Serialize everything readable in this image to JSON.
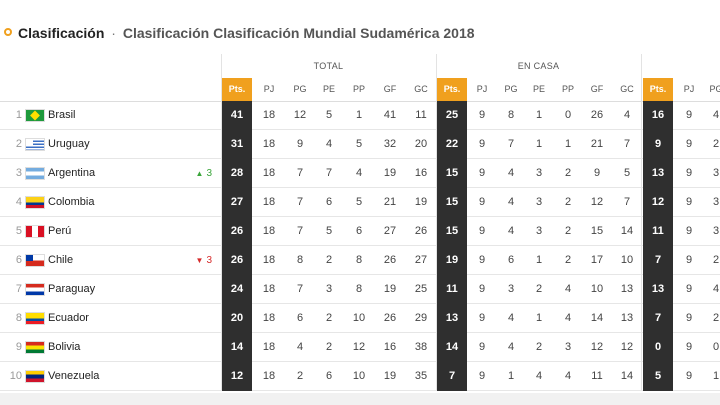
{
  "title": {
    "main": "Clasificación",
    "separator": "·",
    "sub": "Clasificación Clasificación Mundial Sudamérica 2018"
  },
  "groups": {
    "total": "TOTAL",
    "home": "EN CASA"
  },
  "columns": {
    "pts": "Pts.",
    "pj": "PJ",
    "pg": "PG",
    "pe": "PE",
    "pp": "PP",
    "gf": "GF",
    "gc": "GC"
  },
  "teams": [
    {
      "pos": "1",
      "name": "Brasil",
      "trend": "",
      "trend_dir": "",
      "flag": "brazil",
      "total": [
        "41",
        "18",
        "12",
        "5",
        "1",
        "41",
        "11"
      ],
      "home": [
        "25",
        "9",
        "8",
        "1",
        "0",
        "26",
        "4"
      ],
      "away": [
        "16",
        "9",
        "4"
      ]
    },
    {
      "pos": "2",
      "name": "Uruguay",
      "trend": "",
      "trend_dir": "",
      "flag": "uruguay",
      "total": [
        "31",
        "18",
        "9",
        "4",
        "5",
        "32",
        "20"
      ],
      "home": [
        "22",
        "9",
        "7",
        "1",
        "1",
        "21",
        "7"
      ],
      "away": [
        "9",
        "9",
        "2"
      ]
    },
    {
      "pos": "3",
      "name": "Argentina",
      "trend": "3",
      "trend_dir": "up",
      "flag": "argentina",
      "total": [
        "28",
        "18",
        "7",
        "7",
        "4",
        "19",
        "16"
      ],
      "home": [
        "15",
        "9",
        "4",
        "3",
        "2",
        "9",
        "5"
      ],
      "away": [
        "13",
        "9",
        "3"
      ]
    },
    {
      "pos": "4",
      "name": "Colombia",
      "trend": "",
      "trend_dir": "",
      "flag": "colombia",
      "total": [
        "27",
        "18",
        "7",
        "6",
        "5",
        "21",
        "19"
      ],
      "home": [
        "15",
        "9",
        "4",
        "3",
        "2",
        "12",
        "7"
      ],
      "away": [
        "12",
        "9",
        "3"
      ]
    },
    {
      "pos": "5",
      "name": "Perú",
      "trend": "",
      "trend_dir": "",
      "flag": "peru",
      "total": [
        "26",
        "18",
        "7",
        "5",
        "6",
        "27",
        "26"
      ],
      "home": [
        "15",
        "9",
        "4",
        "3",
        "2",
        "15",
        "14"
      ],
      "away": [
        "11",
        "9",
        "3"
      ]
    },
    {
      "pos": "6",
      "name": "Chile",
      "trend": "3",
      "trend_dir": "down",
      "flag": "chile",
      "total": [
        "26",
        "18",
        "8",
        "2",
        "8",
        "26",
        "27"
      ],
      "home": [
        "19",
        "9",
        "6",
        "1",
        "2",
        "17",
        "10"
      ],
      "away": [
        "7",
        "9",
        "2"
      ]
    },
    {
      "pos": "7",
      "name": "Paraguay",
      "trend": "",
      "trend_dir": "",
      "flag": "paraguay",
      "total": [
        "24",
        "18",
        "7",
        "3",
        "8",
        "19",
        "25"
      ],
      "home": [
        "11",
        "9",
        "3",
        "2",
        "4",
        "10",
        "13"
      ],
      "away": [
        "13",
        "9",
        "4"
      ]
    },
    {
      "pos": "8",
      "name": "Ecuador",
      "trend": "",
      "trend_dir": "",
      "flag": "ecuador",
      "total": [
        "20",
        "18",
        "6",
        "2",
        "10",
        "26",
        "29"
      ],
      "home": [
        "13",
        "9",
        "4",
        "1",
        "4",
        "14",
        "13"
      ],
      "away": [
        "7",
        "9",
        "2"
      ]
    },
    {
      "pos": "9",
      "name": "Bolivia",
      "trend": "",
      "trend_dir": "",
      "flag": "bolivia",
      "total": [
        "14",
        "18",
        "4",
        "2",
        "12",
        "16",
        "38"
      ],
      "home": [
        "14",
        "9",
        "4",
        "2",
        "3",
        "12",
        "12"
      ],
      "away": [
        "0",
        "9",
        "0"
      ]
    },
    {
      "pos": "10",
      "name": "Venezuela",
      "trend": "",
      "trend_dir": "",
      "flag": "venezuela",
      "total": [
        "12",
        "18",
        "2",
        "6",
        "10",
        "19",
        "35"
      ],
      "home": [
        "7",
        "9",
        "1",
        "4",
        "4",
        "11",
        "14"
      ],
      "away": [
        "5",
        "9",
        "1"
      ]
    }
  ],
  "trend_icons": {
    "up": "▲",
    "down": "▼"
  },
  "colors": {
    "accent": "#f0a01e",
    "pts_bg": "#2f2f2f",
    "up": "#3aa53a",
    "down": "#d62b2b"
  }
}
